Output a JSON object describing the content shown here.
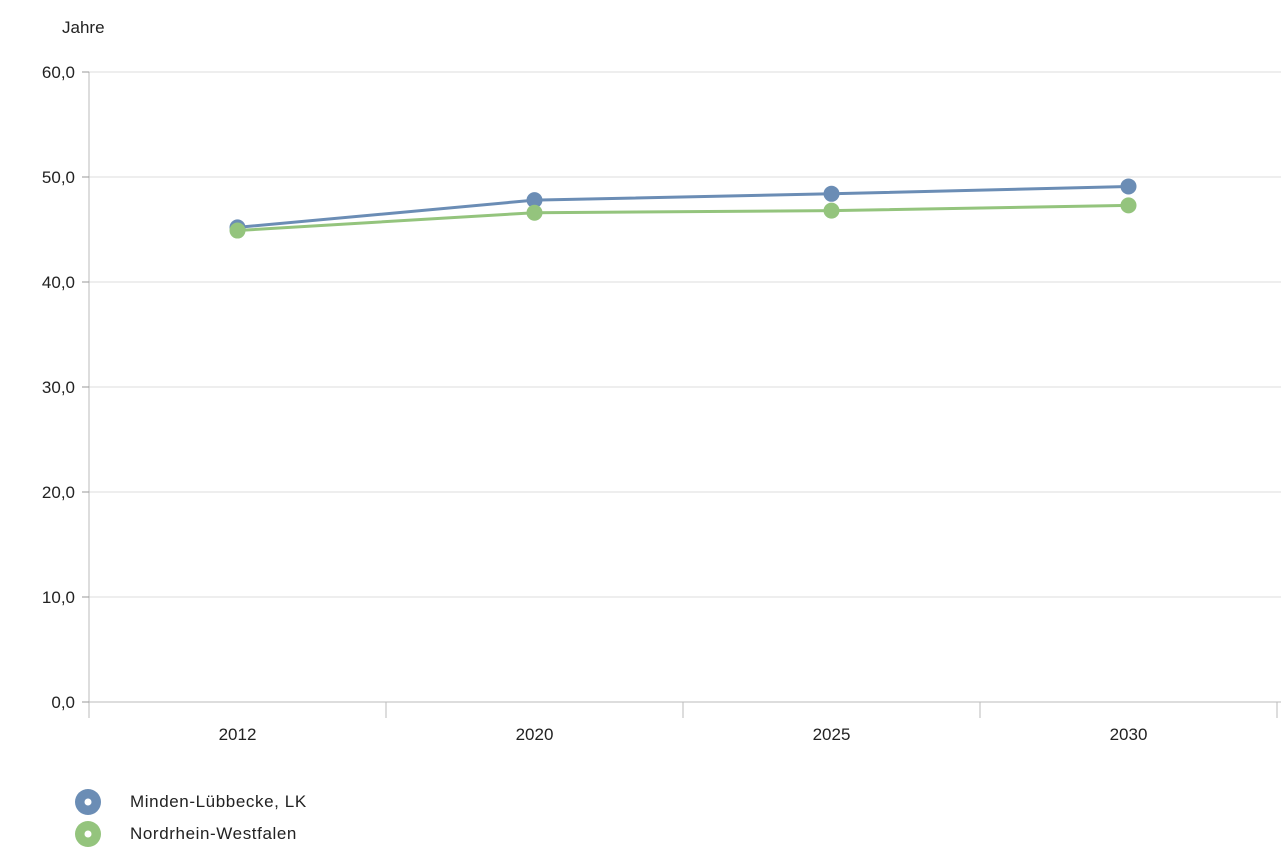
{
  "chart_data": {
    "type": "line",
    "title": "",
    "xlabel": "",
    "ylabel": "Jahre",
    "ylim": [
      0,
      60
    ],
    "yticks": [
      "0,0",
      "10,0",
      "20,0",
      "30,0",
      "40,0",
      "50,0",
      "60,0"
    ],
    "ytick_values": [
      0,
      10,
      20,
      30,
      40,
      50,
      60
    ],
    "categories": [
      "2012",
      "2020",
      "2025",
      "2030"
    ],
    "grid": true,
    "legend_position": "bottom-left",
    "series": [
      {
        "name": "Minden-Lübbecke, LK",
        "color": "#6b8db5",
        "values": [
          45.2,
          47.8,
          48.4,
          49.1
        ]
      },
      {
        "name": "Nordrhein-Westfalen",
        "color": "#94c47d",
        "values": [
          44.9,
          46.6,
          46.8,
          47.3
        ]
      }
    ]
  }
}
